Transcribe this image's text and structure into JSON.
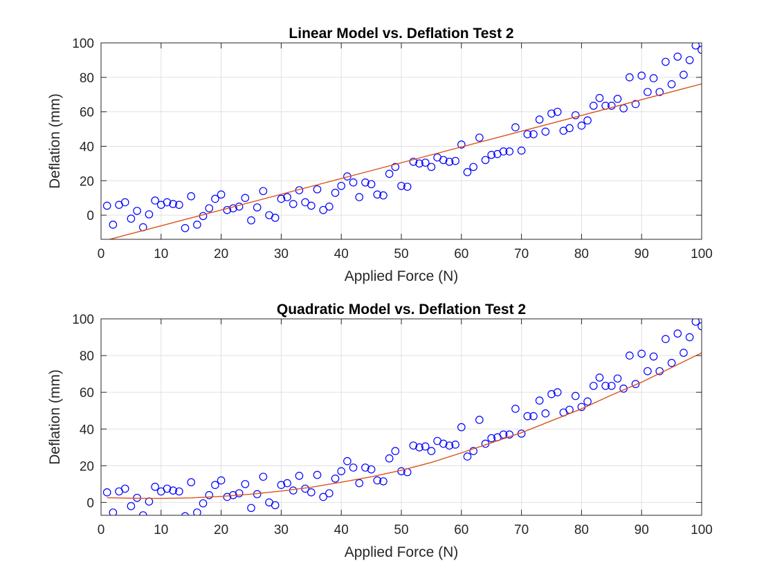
{
  "chart_data": [
    {
      "type": "scatter",
      "title": "Linear Model vs. Deflation Test 2",
      "xlabel": "Applied Force (N)",
      "ylabel": "Deflation (mm)",
      "xlim": [
        0,
        100
      ],
      "ylim": [
        -14,
        100
      ],
      "xticks": [
        0,
        10,
        20,
        30,
        40,
        50,
        60,
        70,
        80,
        90,
        100
      ],
      "yticks": [
        0,
        20,
        40,
        60,
        80,
        100
      ],
      "grid": true,
      "series": [
        {
          "kind": "scatter",
          "marker": "circle",
          "color": "#0000ff",
          "x": [
            1,
            2,
            3,
            4,
            5,
            6,
            7,
            8,
            9,
            10,
            11,
            12,
            13,
            14,
            15,
            16,
            17,
            18,
            19,
            20,
            21,
            22,
            23,
            24,
            25,
            26,
            27,
            28,
            29,
            30,
            31,
            32,
            33,
            34,
            35,
            36,
            37,
            38,
            39,
            40,
            41,
            42,
            43,
            44,
            45,
            46,
            47,
            48,
            49,
            50,
            51,
            52,
            53,
            54,
            55,
            56,
            57,
            58,
            59,
            60,
            61,
            62,
            63,
            64,
            65,
            66,
            67,
            68,
            69,
            70,
            71,
            72,
            73,
            74,
            75,
            76,
            77,
            78,
            79,
            80,
            81,
            82,
            83,
            84,
            85,
            86,
            87,
            88,
            89,
            90,
            91,
            92,
            93,
            94,
            95,
            96,
            97,
            98,
            99,
            100
          ],
          "y": [
            5.5,
            -5.5,
            6,
            7.5,
            -2,
            2.5,
            -7,
            0.5,
            8.5,
            6,
            7.5,
            6.5,
            6,
            -7.5,
            11,
            -5.5,
            -0.5,
            4,
            9.5,
            12,
            3,
            4,
            5,
            10,
            -3,
            4.5,
            14,
            0,
            -1.5,
            9.5,
            10.5,
            6.5,
            14.5,
            7.5,
            5.5,
            15,
            3,
            5,
            13,
            17,
            22.5,
            19,
            10.5,
            19,
            18,
            12,
            11.5,
            24,
            28,
            17,
            16.5,
            31,
            30,
            30.5,
            28,
            33.5,
            32,
            31,
            31.5,
            41,
            25,
            28,
            45,
            32,
            35,
            35.5,
            37,
            37,
            51,
            37.5,
            47,
            47,
            55.5,
            48.5,
            59,
            60,
            49,
            50.5,
            58,
            52,
            55,
            63.5,
            68,
            63.5,
            63.5,
            67.5,
            62,
            80,
            64.5,
            81,
            71.5,
            79.5,
            71.5,
            89,
            76,
            92,
            81.5,
            90,
            98.5,
            96
          ]
        },
        {
          "kind": "line",
          "color": "#d95319",
          "x": [
            1,
            100
          ],
          "y": [
            -14.4,
            76.2
          ]
        }
      ]
    },
    {
      "type": "scatter",
      "title": "Quadratic Model vs. Deflation Test 2",
      "xlabel": "Applied Force (N)",
      "ylabel": "Deflation (mm)",
      "xlim": [
        0,
        100
      ],
      "ylim": [
        -7,
        100
      ],
      "xticks": [
        0,
        10,
        20,
        30,
        40,
        50,
        60,
        70,
        80,
        90,
        100
      ],
      "yticks": [
        0,
        20,
        40,
        60,
        80,
        100
      ],
      "grid": true,
      "series": [
        {
          "kind": "scatter",
          "marker": "circle",
          "color": "#0000ff",
          "x": [
            1,
            2,
            3,
            4,
            5,
            6,
            7,
            8,
            9,
            10,
            11,
            12,
            13,
            14,
            15,
            16,
            17,
            18,
            19,
            20,
            21,
            22,
            23,
            24,
            25,
            26,
            27,
            28,
            29,
            30,
            31,
            32,
            33,
            34,
            35,
            36,
            37,
            38,
            39,
            40,
            41,
            42,
            43,
            44,
            45,
            46,
            47,
            48,
            49,
            50,
            51,
            52,
            53,
            54,
            55,
            56,
            57,
            58,
            59,
            60,
            61,
            62,
            63,
            64,
            65,
            66,
            67,
            68,
            69,
            70,
            71,
            72,
            73,
            74,
            75,
            76,
            77,
            78,
            79,
            80,
            81,
            82,
            83,
            84,
            85,
            86,
            87,
            88,
            89,
            90,
            91,
            92,
            93,
            94,
            95,
            96,
            97,
            98,
            99,
            100
          ],
          "y": [
            5.5,
            -5.5,
            6,
            7.5,
            -2,
            2.5,
            -7,
            0.5,
            8.5,
            6,
            7.5,
            6.5,
            6,
            -7.5,
            11,
            -5.5,
            -0.5,
            4,
            9.5,
            12,
            3,
            4,
            5,
            10,
            -3,
            4.5,
            14,
            0,
            -1.5,
            9.5,
            10.5,
            6.5,
            14.5,
            7.5,
            5.5,
            15,
            3,
            5,
            13,
            17,
            22.5,
            19,
            10.5,
            19,
            18,
            12,
            11.5,
            24,
            28,
            17,
            16.5,
            31,
            30,
            30.5,
            28,
            33.5,
            32,
            31,
            31.5,
            41,
            25,
            28,
            45,
            32,
            35,
            35.5,
            37,
            37,
            51,
            37.5,
            47,
            47,
            55.5,
            48.5,
            59,
            60,
            49,
            50.5,
            58,
            52,
            55,
            63.5,
            68,
            63.5,
            63.5,
            67.5,
            62,
            80,
            64.5,
            81,
            71.5,
            79.5,
            71.5,
            89,
            76,
            92,
            81.5,
            90,
            98.5,
            96
          ]
        },
        {
          "kind": "line",
          "color": "#d95319",
          "x": [
            1,
            5,
            10,
            15,
            20,
            25,
            30,
            35,
            40,
            45,
            50,
            55,
            60,
            65,
            70,
            75,
            80,
            85,
            90,
            95,
            100
          ],
          "y": [
            2.6,
            2.3,
            2.2,
            2.5,
            3.3,
            4.5,
            6.2,
            8.3,
            11,
            14,
            17.5,
            21.8,
            27,
            32.5,
            38,
            44.5,
            51,
            58.5,
            65.5,
            73.5,
            81.5
          ]
        }
      ]
    }
  ]
}
